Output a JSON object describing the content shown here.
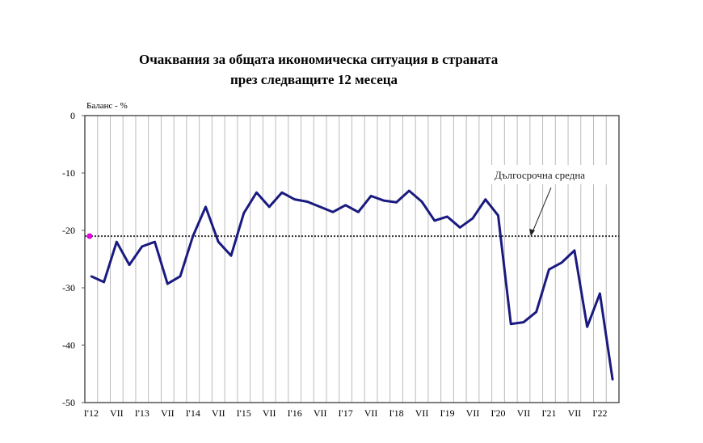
{
  "chart_data": {
    "type": "line",
    "title_line1": "Очаквания за общата икономическа ситуация в страната",
    "title_line2": "през следващите 12 месеца",
    "ylabel": "Баланс - %",
    "xlabel": "",
    "ylim": [
      -50,
      0
    ],
    "yticks": [
      0,
      -10,
      -20,
      -30,
      -40,
      -50
    ],
    "ytick_labels": [
      "0",
      "-10",
      "-20",
      "-30",
      "-40",
      "-50"
    ],
    "x_tick_labels": [
      "I'12",
      "VII",
      "I'13",
      "VII",
      "I'14",
      "VII",
      "I'15",
      "VII",
      "I'16",
      "VII",
      "I'17",
      "VII",
      "I'18",
      "VII",
      "I'19",
      "VII",
      "I'20",
      "VII",
      "I'21",
      "VII",
      "I'22"
    ],
    "grid": "vertical",
    "series": [
      {
        "name": "Очаквания",
        "color": "#1a1a80",
        "values": [
          -28,
          -29,
          -22,
          -26,
          -22.8,
          -22,
          -29.3,
          -28,
          -21,
          -15.9,
          -22,
          -24.4,
          -17,
          -13.4,
          -15.9,
          -13.4,
          -14.6,
          -15,
          -15.9,
          -16.8,
          -15.6,
          -16.8,
          -14,
          -14.8,
          -15.1,
          -13.1,
          -15,
          -18.3,
          -17.6,
          -19.5,
          -17.9,
          -14.6,
          -17.4,
          -36.3,
          -36,
          -34.2,
          -26.8,
          -25.6,
          -23.5,
          -36.8,
          -31,
          -46
        ]
      }
    ],
    "reference_line": {
      "label": "Дългосрочна средна",
      "value": -21,
      "color": "#333333"
    },
    "marker": {
      "value": -21,
      "color": "#e000e0"
    }
  }
}
